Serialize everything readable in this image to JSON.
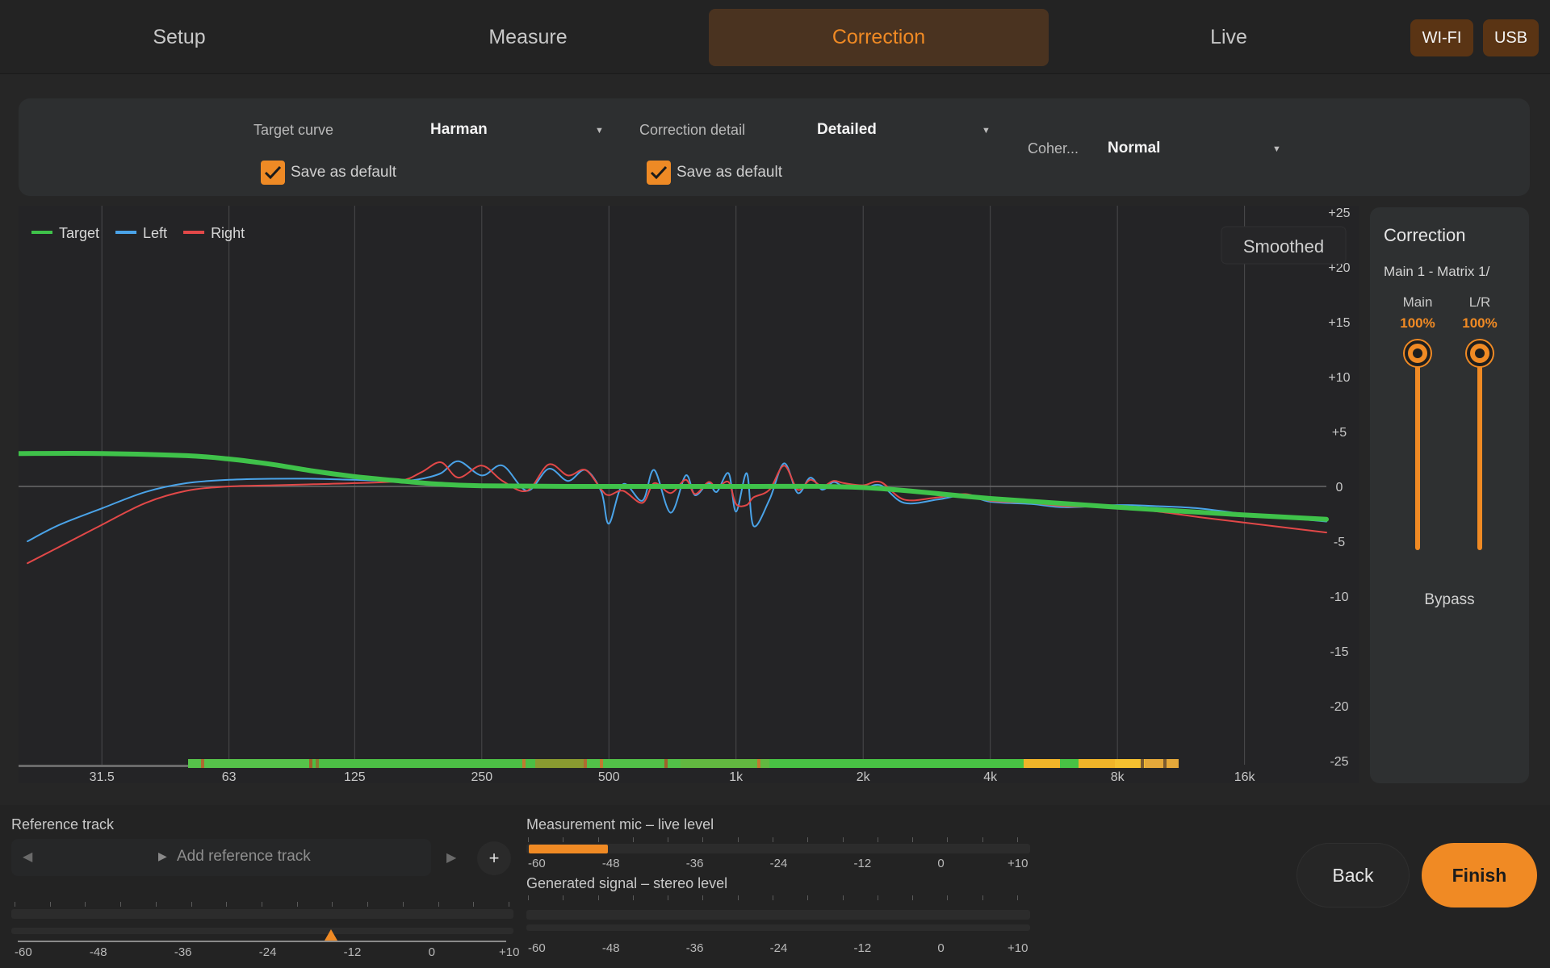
{
  "tabs": [
    {
      "label": "Setup",
      "active": false
    },
    {
      "label": "Measure",
      "active": false
    },
    {
      "label": "Correction",
      "active": true
    },
    {
      "label": "Live",
      "active": false
    }
  ],
  "connections": {
    "wifi": "WI-FI",
    "usb": "USB"
  },
  "settings": {
    "target_curve": {
      "label": "Target curve",
      "value": "Harman",
      "save_default": "Save as default",
      "checked": true
    },
    "correction_detail": {
      "label": "Correction detail",
      "value": "Detailed",
      "save_default": "Save as default",
      "checked": true
    },
    "coherence": {
      "label": "Coher...",
      "value": "Normal"
    }
  },
  "chart": {
    "smoothed_label": "Smoothed",
    "legend": [
      {
        "name": "Target",
        "color": "#3fc24a"
      },
      {
        "name": "Left",
        "color": "#4aa3e8"
      },
      {
        "name": "Right",
        "color": "#e24848"
      }
    ]
  },
  "chart_data": {
    "type": "line",
    "x_scale": "log",
    "x_ticks": [
      "31.5",
      "63",
      "125",
      "250",
      "500",
      "1k",
      "2k",
      "4k",
      "8k",
      "16k"
    ],
    "y_ticks": [
      "+25",
      "+20",
      "+15",
      "+10",
      "+5",
      "0",
      "-5",
      "-10",
      "-15",
      "-20",
      "-25"
    ],
    "ylim": [
      -25,
      25
    ],
    "xlabel": "",
    "ylabel": "",
    "series": [
      {
        "name": "Target",
        "color": "#3fc24a",
        "x": [
          20,
          31.5,
          50,
          63,
          80,
          100,
          125,
          160,
          200,
          250,
          400,
          1000,
          2000,
          4000,
          8000,
          16000,
          25000
        ],
        "y": [
          3,
          3,
          2.8,
          2.5,
          2.0,
          1.4,
          0.9,
          0.5,
          0.2,
          0.05,
          0,
          0,
          -0.1,
          -1.1,
          -1.9,
          -2.6,
          -3.0
        ]
      },
      {
        "name": "Left",
        "color": "#4aa3e8",
        "x": [
          21,
          25,
          31.5,
          40,
          50,
          63,
          80,
          100,
          125,
          160,
          180,
          200,
          220,
          250,
          280,
          320,
          360,
          400,
          440,
          480,
          500,
          540,
          600,
          640,
          700,
          760,
          800,
          860,
          900,
          960,
          1000,
          1060,
          1100,
          1200,
          1300,
          1400,
          1500,
          1600,
          1700,
          1800,
          2000,
          2200,
          2500,
          3000,
          3500,
          4000,
          5000,
          6000,
          8000,
          10000,
          12500,
          16000,
          25000
        ],
        "y": [
          -5,
          -3.5,
          -2,
          -0.5,
          0.3,
          0.6,
          0.7,
          0.7,
          0.6,
          0.5,
          0.7,
          1.2,
          2.3,
          1.0,
          1.9,
          -0.4,
          1.6,
          0.5,
          1.5,
          -0.5,
          -3.4,
          0.2,
          -1.3,
          1.5,
          -2.4,
          1.0,
          -0.8,
          0.3,
          -0.5,
          1.2,
          -2.3,
          1.2,
          -3.6,
          -1.2,
          2.1,
          -0.6,
          0.8,
          -0.3,
          0.4,
          0,
          -0.2,
          0.1,
          -1.5,
          -1.2,
          -0.8,
          -1.4,
          -1.6,
          -1.9,
          -1.7,
          -1.8,
          -2.0,
          -2.5,
          -3.2
        ]
      },
      {
        "name": "Right",
        "color": "#e24848",
        "x": [
          21,
          25,
          31.5,
          40,
          50,
          63,
          80,
          100,
          125,
          160,
          180,
          200,
          220,
          250,
          280,
          320,
          360,
          400,
          440,
          480,
          500,
          540,
          600,
          640,
          700,
          760,
          800,
          860,
          900,
          960,
          1000,
          1060,
          1100,
          1200,
          1300,
          1400,
          1500,
          1600,
          1700,
          1800,
          2000,
          2200,
          2500,
          3000,
          3500,
          4000,
          5000,
          6000,
          8000,
          10000,
          12500,
          16000,
          25000
        ],
        "y": [
          -7,
          -5.5,
          -3.5,
          -1.5,
          -0.4,
          0,
          0.1,
          0.2,
          0.3,
          0.5,
          1.3,
          2.2,
          0.8,
          1.9,
          0.5,
          -0.4,
          2.0,
          1.0,
          1.5,
          -0.3,
          -0.8,
          -0.4,
          -1.5,
          0.3,
          -0.6,
          0.6,
          -0.7,
          0.4,
          -0.1,
          0.4,
          -1.6,
          -1.7,
          -1.0,
          -0.3,
          1.9,
          -0.3,
          0.6,
          0.0,
          0.5,
          0.3,
          0.1,
          0.4,
          -1.2,
          -1.0,
          -0.7,
          -1.3,
          -1.5,
          -1.8,
          -1.9,
          -2.3,
          -2.8,
          -3.3,
          -4.2
        ]
      }
    ]
  },
  "correction_panel": {
    "title": "Correction",
    "subtitle": "Main 1 - Matrix 1/",
    "main_label": "Main",
    "main_value": "100%",
    "lr_label": "L/R",
    "lr_value": "100%",
    "main_level": 1.0,
    "lr_level": 1.0,
    "bypass": "Bypass"
  },
  "reference": {
    "label": "Reference track",
    "add_label": "Add reference track",
    "plus": "+",
    "scale": [
      "-60",
      "-48",
      "-36",
      "-24",
      "-12",
      "0",
      "+10"
    ]
  },
  "meters": {
    "mic_label": "Measurement mic – live level",
    "gen_label": "Generated signal – stereo level",
    "scale": [
      "-60",
      "-48",
      "-36",
      "-24",
      "-12",
      "0",
      "+10"
    ]
  },
  "buttons": {
    "back": "Back",
    "finish": "Finish"
  },
  "colors": {
    "accent": "#f08a24",
    "background": "#262626",
    "panel": "#2d2f30"
  }
}
